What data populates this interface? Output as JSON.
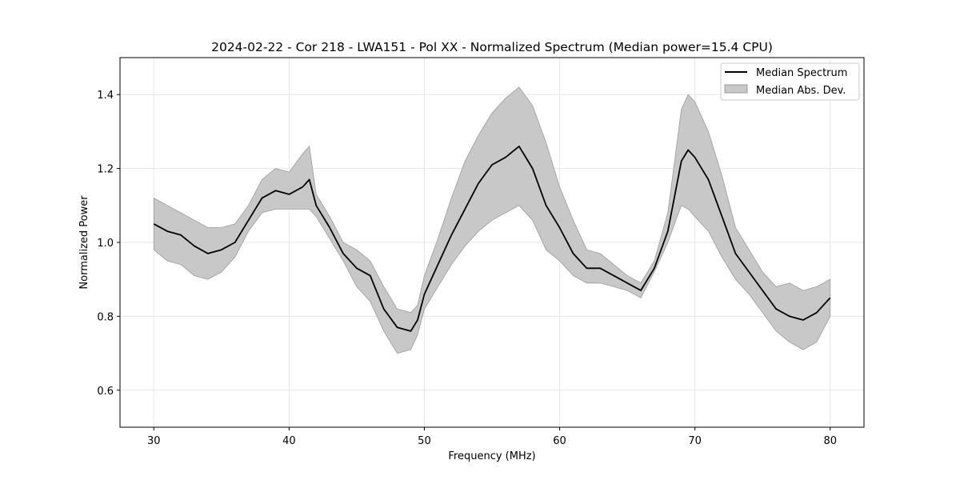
{
  "chart_data": {
    "type": "line",
    "title": "2024-02-22 - Cor 218 - LWA151 - Pol XX - Normalized Spectrum (Median power=15.4 CPU)",
    "xlabel": "Frequency (MHz)",
    "ylabel": "Normalized Power",
    "xlim": [
      27.5,
      82.5
    ],
    "ylim": [
      0.5,
      1.5
    ],
    "xticks": [
      30,
      40,
      50,
      60,
      70,
      80
    ],
    "yticks": [
      0.6,
      0.8,
      1.0,
      1.2,
      1.4
    ],
    "xtick_labels": [
      "30",
      "40",
      "50",
      "60",
      "70",
      "80"
    ],
    "ytick_labels": [
      "0.6",
      "0.8",
      "1.0",
      "1.2",
      "1.4"
    ],
    "grid": true,
    "legend": {
      "placement": "top-right",
      "entries": [
        {
          "label": "Median Spectrum",
          "kind": "line"
        },
        {
          "label": "Median Abs. Dev.",
          "kind": "band"
        }
      ]
    },
    "colors": {
      "line": "#000000",
      "band_fill": "#c8c8c8",
      "band_edge": "#9a9a9a",
      "grid": "#e6e6e6"
    },
    "series": [
      {
        "name": "Median Spectrum",
        "x": [
          30,
          31,
          32,
          33,
          34,
          35,
          36,
          37,
          38,
          39,
          40,
          41,
          41.5,
          42,
          43,
          44,
          45,
          46,
          47,
          48,
          49,
          49.5,
          50,
          51,
          52,
          53,
          54,
          55,
          56,
          57,
          58,
          59,
          60,
          61,
          62,
          63,
          64,
          65,
          66,
          67,
          68,
          69,
          69.5,
          70,
          71,
          72,
          73,
          74,
          75,
          76,
          77,
          78,
          79,
          80
        ],
        "values": [
          1.05,
          1.03,
          1.02,
          0.99,
          0.97,
          0.98,
          1.0,
          1.06,
          1.12,
          1.14,
          1.13,
          1.15,
          1.17,
          1.1,
          1.04,
          0.97,
          0.93,
          0.91,
          0.82,
          0.77,
          0.76,
          0.79,
          0.86,
          0.94,
          1.02,
          1.09,
          1.16,
          1.21,
          1.23,
          1.26,
          1.2,
          1.1,
          1.04,
          0.97,
          0.93,
          0.93,
          0.91,
          0.89,
          0.87,
          0.93,
          1.03,
          1.22,
          1.25,
          1.23,
          1.17,
          1.07,
          0.97,
          0.92,
          0.87,
          0.82,
          0.8,
          0.79,
          0.81,
          0.85
        ]
      },
      {
        "name": "Median Abs. Dev. (lower)",
        "x": [
          30,
          31,
          32,
          33,
          34,
          35,
          36,
          37,
          38,
          39,
          40,
          41,
          41.5,
          42,
          43,
          44,
          45,
          46,
          47,
          48,
          49,
          49.5,
          50,
          51,
          52,
          53,
          54,
          55,
          56,
          57,
          58,
          59,
          60,
          61,
          62,
          63,
          64,
          65,
          66,
          67,
          68,
          69,
          69.5,
          70,
          71,
          72,
          73,
          74,
          75,
          76,
          77,
          78,
          79,
          80
        ],
        "values": [
          0.98,
          0.95,
          0.94,
          0.91,
          0.9,
          0.92,
          0.96,
          1.03,
          1.08,
          1.09,
          1.09,
          1.09,
          1.09,
          1.07,
          1.01,
          0.95,
          0.88,
          0.84,
          0.76,
          0.7,
          0.71,
          0.75,
          0.82,
          0.88,
          0.94,
          0.99,
          1.03,
          1.06,
          1.08,
          1.1,
          1.06,
          0.98,
          0.95,
          0.91,
          0.89,
          0.89,
          0.88,
          0.87,
          0.85,
          0.92,
          1.0,
          1.1,
          1.09,
          1.07,
          1.03,
          0.96,
          0.9,
          0.86,
          0.81,
          0.76,
          0.73,
          0.71,
          0.73,
          0.8
        ]
      },
      {
        "name": "Median Abs. Dev. (upper)",
        "x": [
          30,
          31,
          32,
          33,
          34,
          35,
          36,
          37,
          38,
          39,
          40,
          41,
          41.5,
          42,
          43,
          44,
          45,
          46,
          47,
          48,
          49,
          49.5,
          50,
          51,
          52,
          53,
          54,
          55,
          56,
          57,
          58,
          59,
          60,
          61,
          62,
          63,
          64,
          65,
          66,
          67,
          68,
          69,
          69.5,
          70,
          71,
          72,
          73,
          74,
          75,
          76,
          77,
          78,
          79,
          80
        ],
        "values": [
          1.12,
          1.1,
          1.08,
          1.06,
          1.04,
          1.04,
          1.05,
          1.1,
          1.17,
          1.2,
          1.19,
          1.24,
          1.26,
          1.13,
          1.07,
          1.0,
          0.98,
          0.95,
          0.88,
          0.82,
          0.81,
          0.83,
          0.91,
          1.01,
          1.12,
          1.22,
          1.29,
          1.35,
          1.39,
          1.42,
          1.37,
          1.27,
          1.15,
          1.06,
          0.98,
          0.97,
          0.94,
          0.91,
          0.89,
          0.95,
          1.08,
          1.36,
          1.4,
          1.38,
          1.3,
          1.18,
          1.04,
          0.98,
          0.92,
          0.88,
          0.89,
          0.87,
          0.88,
          0.9
        ]
      }
    ]
  }
}
